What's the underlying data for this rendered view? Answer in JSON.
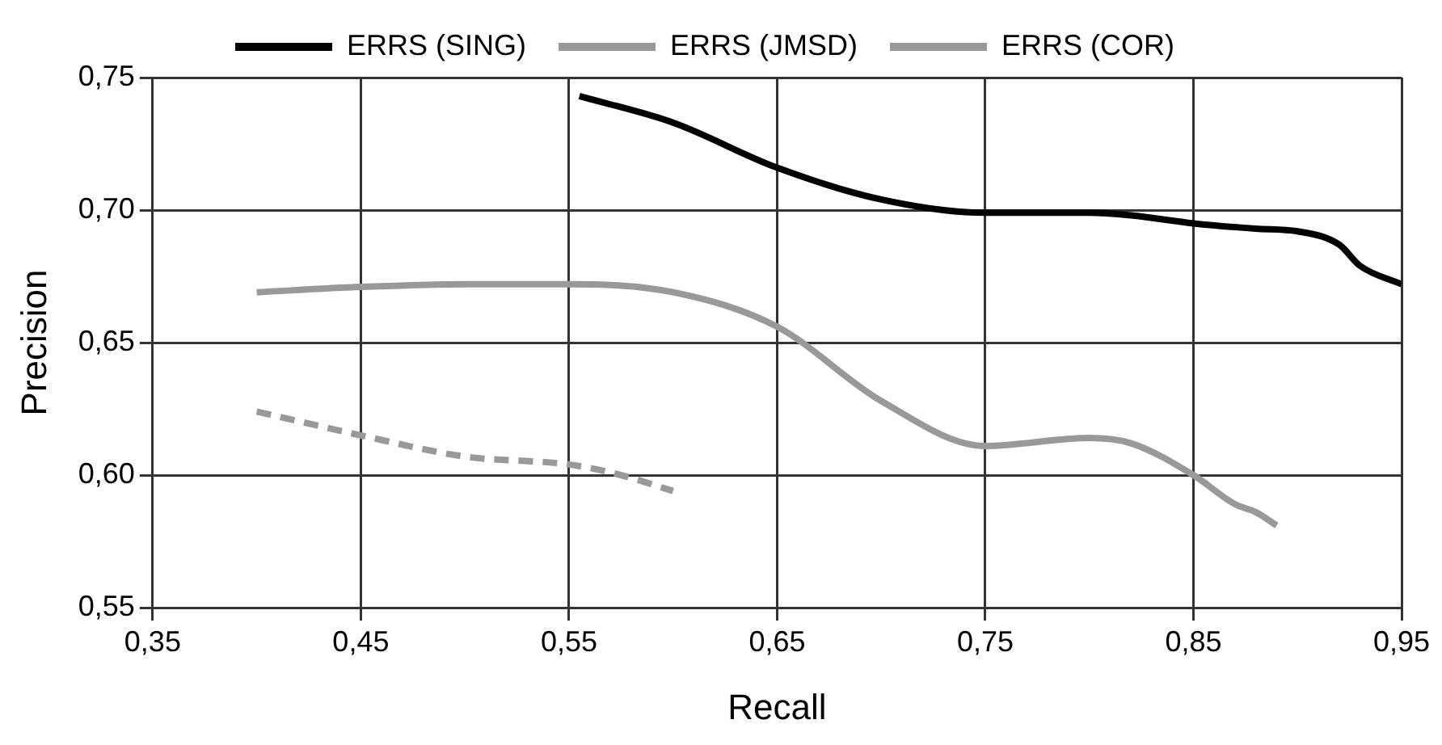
{
  "chart_data": {
    "type": "line",
    "xlabel": "Recall",
    "ylabel": "Precision",
    "xlim": [
      0.35,
      0.95
    ],
    "xticks": [
      {
        "value": 0.35,
        "label": "0,35"
      },
      {
        "value": 0.45,
        "label": "0,45"
      },
      {
        "value": 0.55,
        "label": "0,55"
      },
      {
        "value": 0.65,
        "label": "0,65"
      },
      {
        "value": 0.75,
        "label": "0,75"
      },
      {
        "value": 0.85,
        "label": "0,85"
      },
      {
        "value": 0.95,
        "label": "0,95"
      }
    ],
    "ylim": [
      0.55,
      0.75
    ],
    "yticks": [
      {
        "value": 0.55,
        "label": "0,55"
      },
      {
        "value": 0.6,
        "label": "0,60"
      },
      {
        "value": 0.65,
        "label": "0,65"
      },
      {
        "value": 0.7,
        "label": "0,70"
      },
      {
        "value": 0.75,
        "label": "0,75"
      }
    ],
    "grid": true,
    "legend": "top",
    "marker": "none",
    "series": [
      {
        "name": "ERRS (SING)",
        "color": "#000000",
        "line_style": "solid",
        "x": [
          0.555,
          0.6,
          0.65,
          0.7,
          0.75,
          0.8,
          0.82,
          0.85,
          0.88,
          0.9,
          0.92,
          0.93,
          0.95
        ],
        "values": [
          0.743,
          0.733,
          0.716,
          0.704,
          0.699,
          0.699,
          0.698,
          0.695,
          0.693,
          0.692,
          0.687,
          0.679,
          0.672
        ]
      },
      {
        "name": "ERRS (JMSD)",
        "color": "#999999",
        "line_style": "solid",
        "x": [
          0.4,
          0.45,
          0.5,
          0.55,
          0.6,
          0.65,
          0.7,
          0.75,
          0.8,
          0.82,
          0.85,
          0.87,
          0.88,
          0.89
        ],
        "values": [
          0.669,
          0.671,
          0.672,
          0.672,
          0.669,
          0.656,
          0.628,
          0.611,
          0.614,
          0.612,
          0.6,
          0.589,
          0.586,
          0.581
        ]
      },
      {
        "name": "ERRS (COR)",
        "color": "#999999",
        "line_style": "dashed",
        "x": [
          0.4,
          0.45,
          0.5,
          0.55,
          0.575,
          0.6
        ],
        "values": [
          0.624,
          0.615,
          0.607,
          0.604,
          0.6,
          0.594
        ]
      }
    ]
  }
}
